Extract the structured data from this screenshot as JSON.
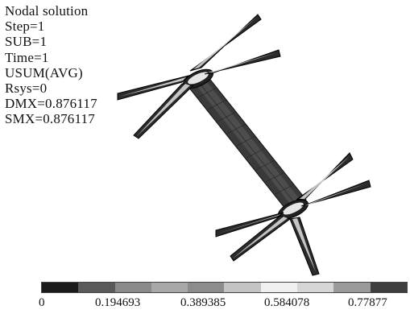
{
  "info_lines": [
    "Nodal solution",
    "Step=1",
    "SUB=1",
    "Time=1",
    "USUM(AVG)",
    "Rsys=0",
    "DMX=0.876117",
    "SMX=0.876117"
  ],
  "legend": {
    "colors": [
      "#1a1a1a",
      "#5a5a5a",
      "#8a8a8a",
      "#a8a8a8",
      "#8c8c8c",
      "#c4c4c4",
      "#f0f0f0",
      "#d6d6d6",
      "#9a9a9a",
      "#3e3e3e"
    ],
    "tick_labels": [
      "0",
      "0.194693",
      "0.389385",
      "0.584078",
      "0.77877"
    ]
  },
  "colors": {
    "structure_dark": "#2b2b2b",
    "structure_mid": "#555555",
    "highlight": "#e8e8e8"
  }
}
